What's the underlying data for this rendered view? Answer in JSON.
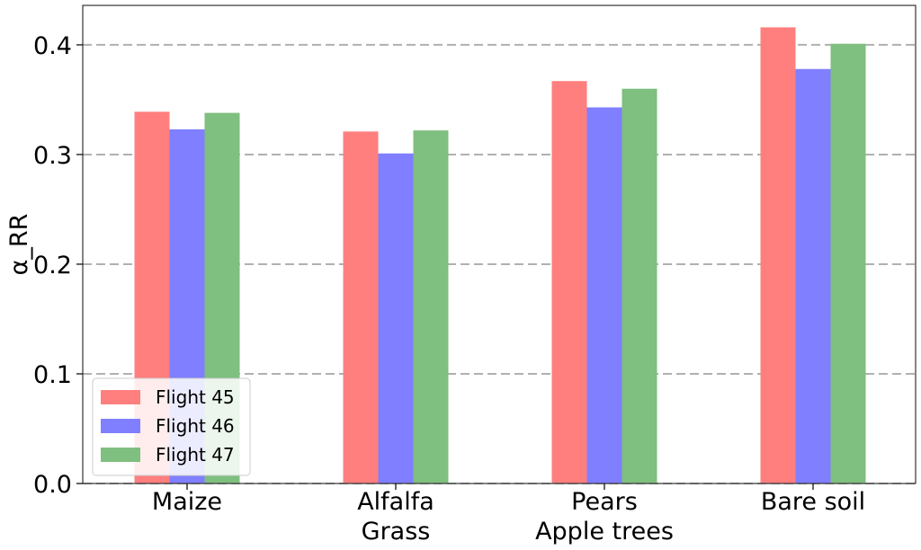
{
  "chart_data": {
    "type": "bar",
    "categories": [
      [
        "Maize"
      ],
      [
        "Alfalfa",
        "Grass"
      ],
      [
        "Pears",
        "Apple trees"
      ],
      [
        "Bare soil"
      ]
    ],
    "series": [
      {
        "name": "Flight 45",
        "color": "#ff7f7f",
        "values": [
          0.339,
          0.321,
          0.367,
          0.416
        ]
      },
      {
        "name": "Flight 46",
        "color": "#7f7fff",
        "values": [
          0.323,
          0.301,
          0.343,
          0.378
        ]
      },
      {
        "name": "Flight 47",
        "color": "#7fbf7f",
        "values": [
          0.338,
          0.322,
          0.36,
          0.401
        ]
      }
    ],
    "xlabel": "",
    "ylabel": "α_RR",
    "ylim": [
      0,
      0.436
    ],
    "yticks": [
      0.0,
      0.1,
      0.2,
      0.3,
      0.4
    ],
    "ytick_labels": [
      "0.0",
      "0.1",
      "0.2",
      "0.3",
      "0.4"
    ],
    "grid": "horizontal-dashed",
    "legend_position": "lower-left"
  }
}
